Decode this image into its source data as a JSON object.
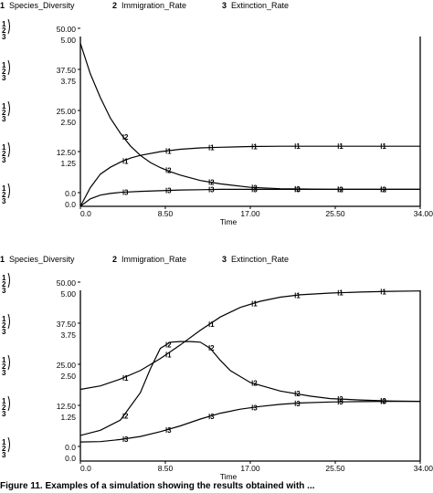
{
  "caption": "Figure 11. Examples of a simulation showing the results obtained with ...",
  "chart_data": [
    {
      "type": "line",
      "legend": [
        {
          "num": "1",
          "name": "Species_Diversity"
        },
        {
          "num": "2",
          "name": "Immigration_Rate"
        },
        {
          "num": "3",
          "name": "Extinction_Rate"
        }
      ],
      "xlabel": "Time",
      "xlim": [
        0,
        34
      ],
      "xticks": [
        "0.0",
        "8.50",
        "17.00",
        "25.50",
        "34.00"
      ],
      "ylim": [
        0,
        50
      ],
      "yticks": [
        {
          "v1": "50.00",
          "v2": "5.00"
        },
        {
          "v1": "37.50",
          "v2": "3.75"
        },
        {
          "v1": "25.00",
          "v2": "2.50"
        },
        {
          "v1": "12.50",
          "v2": "1.25"
        },
        {
          "v1": "0.0",
          "v2": "0.0"
        }
      ],
      "series": [
        {
          "num": "1",
          "name": "Species_Diversity",
          "x": [
            0,
            1,
            2,
            3,
            4,
            5,
            6,
            8,
            10,
            12,
            14,
            17,
            20,
            25,
            30,
            34
          ],
          "y": [
            0,
            5.5,
            9.5,
            11.5,
            13.0,
            14.2,
            15.0,
            16.1,
            16.8,
            17.2,
            17.4,
            17.6,
            17.7,
            17.7,
            17.7,
            17.7
          ]
        },
        {
          "num": "2",
          "name": "Immigration_Rate",
          "x": [
            0,
            1,
            2,
            3,
            4,
            5,
            6,
            7,
            8,
            9,
            10,
            12,
            14,
            17,
            20,
            25,
            30,
            34
          ],
          "y": [
            48,
            39,
            32,
            26,
            21.5,
            17.8,
            15.0,
            12.9,
            11.4,
            10.2,
            9.2,
            7.6,
            6.6,
            5.6,
            5.2,
            5.0,
            5.0,
            5.0
          ]
        },
        {
          "num": "3",
          "name": "Extinction_Rate",
          "x": [
            0,
            1,
            2,
            3,
            4,
            6,
            8,
            10,
            12,
            14,
            17,
            20,
            25,
            30,
            34
          ],
          "y": [
            0,
            2.2,
            3.3,
            3.8,
            4.1,
            4.4,
            4.6,
            4.8,
            4.9,
            5.0,
            5.0,
            5.0,
            5.0,
            5.0,
            5.0
          ]
        }
      ]
    },
    {
      "type": "line",
      "legend": [
        {
          "num": "1",
          "name": "Species_Diversity"
        },
        {
          "num": "2",
          "name": "Immigration_Rate"
        },
        {
          "num": "3",
          "name": "Extinction_Rate"
        }
      ],
      "xlabel": "Time",
      "xlim": [
        0,
        34
      ],
      "xticks": [
        "0.0",
        "8.50",
        "17.00",
        "25.50",
        "34.00"
      ],
      "ylim": [
        0,
        50
      ],
      "yticks": [
        {
          "v1": "50.00",
          "v2": "5.00"
        },
        {
          "v1": "37.50",
          "v2": "3.75"
        },
        {
          "v1": "25.00",
          "v2": "2.50"
        },
        {
          "v1": "12.50",
          "v2": "1.25"
        },
        {
          "v1": "0.0",
          "v2": "0.0"
        }
      ],
      "series": [
        {
          "num": "1",
          "name": "Species_Diversity",
          "x": [
            0,
            2,
            4,
            6,
            8,
            10,
            12,
            14,
            16,
            18,
            20,
            22,
            25,
            28,
            31,
            34
          ],
          "y": [
            21,
            22,
            24,
            26.5,
            30,
            34,
            38.3,
            42.2,
            45,
            46.8,
            48,
            48.7,
            49.2,
            49.5,
            49.7,
            49.8
          ]
        },
        {
          "num": "2",
          "name": "Immigration_Rate",
          "x": [
            0,
            2,
            4,
            6,
            7,
            8,
            9,
            10,
            11,
            12,
            13,
            14,
            15,
            17,
            20,
            23,
            25,
            28,
            31,
            34
          ],
          "y": [
            7.5,
            9.0,
            12.0,
            20.0,
            27.0,
            33.0,
            34.8,
            35.0,
            35.0,
            34.8,
            33.0,
            29.5,
            26.5,
            23.0,
            20.5,
            19.0,
            18.3,
            17.9,
            17.6,
            17.5
          ]
        },
        {
          "num": "3",
          "name": "Extinction_Rate",
          "x": [
            0,
            2,
            4,
            6,
            8,
            10,
            12,
            14,
            16,
            18,
            20,
            22,
            25,
            28,
            31,
            34
          ],
          "y": [
            5.6,
            5.7,
            6.3,
            7.2,
            8.6,
            10.3,
            12.3,
            14.0,
            15.2,
            16.0,
            16.6,
            17.0,
            17.3,
            17.4,
            17.5,
            17.5
          ]
        }
      ]
    }
  ]
}
